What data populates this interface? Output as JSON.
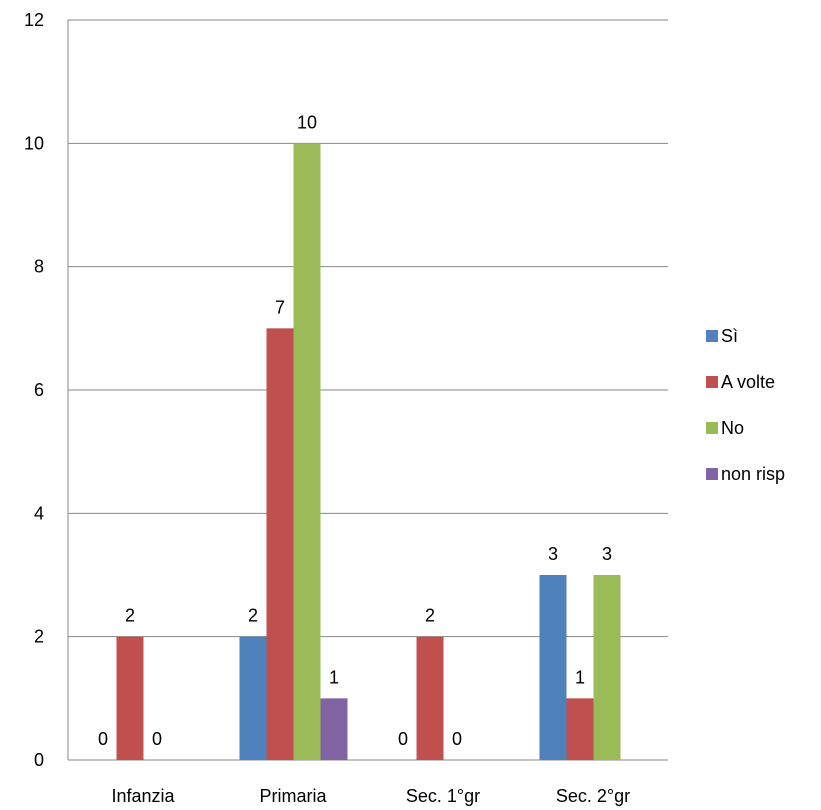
{
  "chart_data": {
    "type": "bar",
    "categories": [
      "Infanzia",
      "Primaria",
      "Sec. 1°gr",
      "Sec. 2°gr"
    ],
    "series": [
      {
        "name": "Sì",
        "color": "#4F81BD",
        "values": [
          0,
          2,
          0,
          3
        ]
      },
      {
        "name": "A volte",
        "color": "#C0504D",
        "values": [
          2,
          7,
          2,
          1
        ]
      },
      {
        "name": "No",
        "color": "#9BBB59",
        "values": [
          0,
          10,
          0,
          3
        ]
      },
      {
        "name": "non risp",
        "color": "#8064A2",
        "values": [
          null,
          1,
          null,
          null
        ]
      }
    ],
    "data_labels": [
      {
        "category": 0,
        "series": 0,
        "text": "0"
      },
      {
        "category": 0,
        "series": 1,
        "text": "2"
      },
      {
        "category": 0,
        "series": 2,
        "text": "0"
      },
      {
        "category": 1,
        "series": 0,
        "text": "2"
      },
      {
        "category": 1,
        "series": 1,
        "text": "7"
      },
      {
        "category": 1,
        "series": 2,
        "text": "10"
      },
      {
        "category": 1,
        "series": 3,
        "text": "1"
      },
      {
        "category": 2,
        "series": 0,
        "text": "0"
      },
      {
        "category": 2,
        "series": 1,
        "text": "2"
      },
      {
        "category": 2,
        "series": 2,
        "text": "0"
      },
      {
        "category": 3,
        "series": 0,
        "text": "3"
      },
      {
        "category": 3,
        "series": 1,
        "text": "1"
      },
      {
        "category": 3,
        "series": 2,
        "text": "3"
      }
    ],
    "yticks": [
      "0",
      "2",
      "4",
      "6",
      "8",
      "10",
      "12"
    ],
    "ylim": [
      0,
      12
    ],
    "ystep": 2,
    "grid": true,
    "legend_position": "right",
    "title": "",
    "xlabel": "",
    "ylabel": ""
  }
}
